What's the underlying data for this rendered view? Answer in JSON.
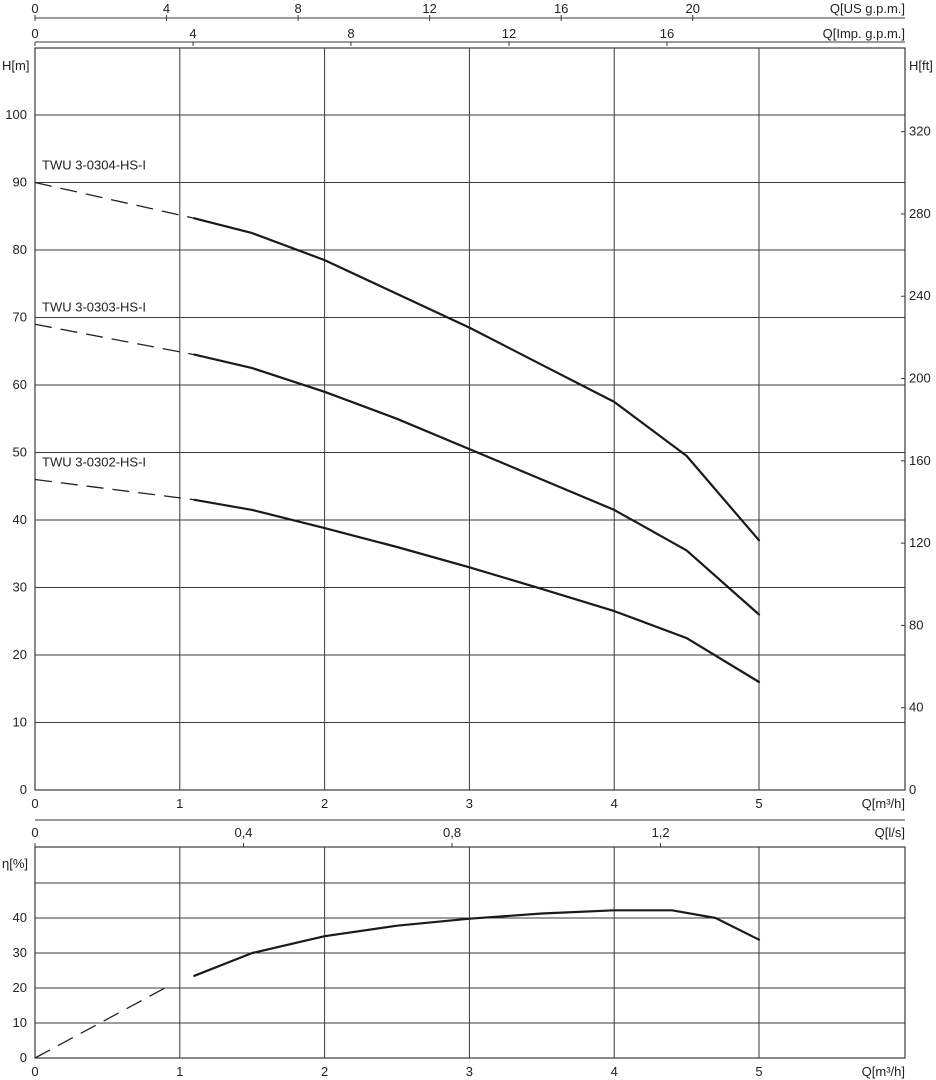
{
  "chart_data": [
    {
      "type": "line",
      "panel": "head",
      "x_unit": "Q[m³/h]",
      "xlim": [
        0,
        6
      ],
      "x_ticks": [
        "0",
        "1",
        "2",
        "3",
        "4",
        "5"
      ],
      "y_left_unit": "H[m]",
      "ylim": [
        0,
        110
      ],
      "y_left_ticks": [
        "0",
        "10",
        "20",
        "30",
        "40",
        "50",
        "60",
        "70",
        "80",
        "90",
        "100"
      ],
      "y_right_unit": "H[ft]",
      "y_right_ticks": [
        "0",
        "40",
        "80",
        "120",
        "160",
        "200",
        "240",
        "280",
        "320"
      ],
      "top_axis_us": {
        "unit": "Q[US g.p.m.]",
        "ticks": [
          "0",
          "4",
          "8",
          "12",
          "16",
          "20"
        ]
      },
      "top_axis_imp": {
        "unit": "Q[Imp. g.p.m.]",
        "ticks": [
          "0",
          "4",
          "8",
          "12",
          "16"
        ]
      },
      "grid": true,
      "series": [
        {
          "name": "TWU 3-0304-HS-I",
          "dashed_extension": [
            [
              0,
              90
            ],
            [
              1.1,
              84.7
            ]
          ],
          "x": [
            1.1,
            1.5,
            2.0,
            2.5,
            3.0,
            3.5,
            4.0,
            4.5,
            5.0
          ],
          "y": [
            84.7,
            82.5,
            78.5,
            73.5,
            68.5,
            63.0,
            57.5,
            49.5,
            37.0
          ]
        },
        {
          "name": "TWU 3-0303-HS-I",
          "dashed_extension": [
            [
              0,
              69
            ],
            [
              1.1,
              64.5
            ]
          ],
          "x": [
            1.1,
            1.5,
            2.0,
            2.5,
            3.0,
            3.5,
            4.0,
            4.5,
            5.0
          ],
          "y": [
            64.5,
            62.5,
            59.0,
            55.0,
            50.5,
            46.0,
            41.5,
            35.5,
            26.0
          ]
        },
        {
          "name": "TWU 3-0302-HS-I",
          "dashed_extension": [
            [
              0,
              46
            ],
            [
              1.1,
              43.0
            ]
          ],
          "x": [
            1.1,
            1.5,
            2.0,
            2.5,
            3.0,
            3.5,
            4.0,
            4.5,
            5.0
          ],
          "y": [
            43.0,
            41.5,
            38.8,
            36.0,
            33.0,
            29.8,
            26.5,
            22.5,
            16.0
          ]
        }
      ]
    },
    {
      "type": "line",
      "panel": "efficiency",
      "x_unit": "Q[m³/h]",
      "xlim": [
        0,
        6
      ],
      "x_ticks": [
        "0",
        "1",
        "2",
        "3",
        "4",
        "5"
      ],
      "y_unit": "η[%]",
      "ylim": [
        0,
        50
      ],
      "y_ticks": [
        "0",
        "10",
        "20",
        "30",
        "40"
      ],
      "top_axis_ls": {
        "unit": "Q[l/s]",
        "ticks": [
          "0",
          "0,4",
          "0,8",
          "1,2"
        ]
      },
      "grid": true,
      "series": [
        {
          "dashed_extension": [
            [
              0,
              0
            ],
            [
              0.92,
              20.5
            ]
          ],
          "x": [
            1.1,
            1.5,
            2.0,
            2.5,
            3.0,
            3.5,
            4.0,
            4.4,
            4.7,
            5.0
          ],
          "y": [
            23.5,
            30.0,
            34.8,
            37.8,
            39.8,
            41.3,
            42.2,
            42.2,
            40.0,
            33.8
          ]
        }
      ]
    }
  ]
}
